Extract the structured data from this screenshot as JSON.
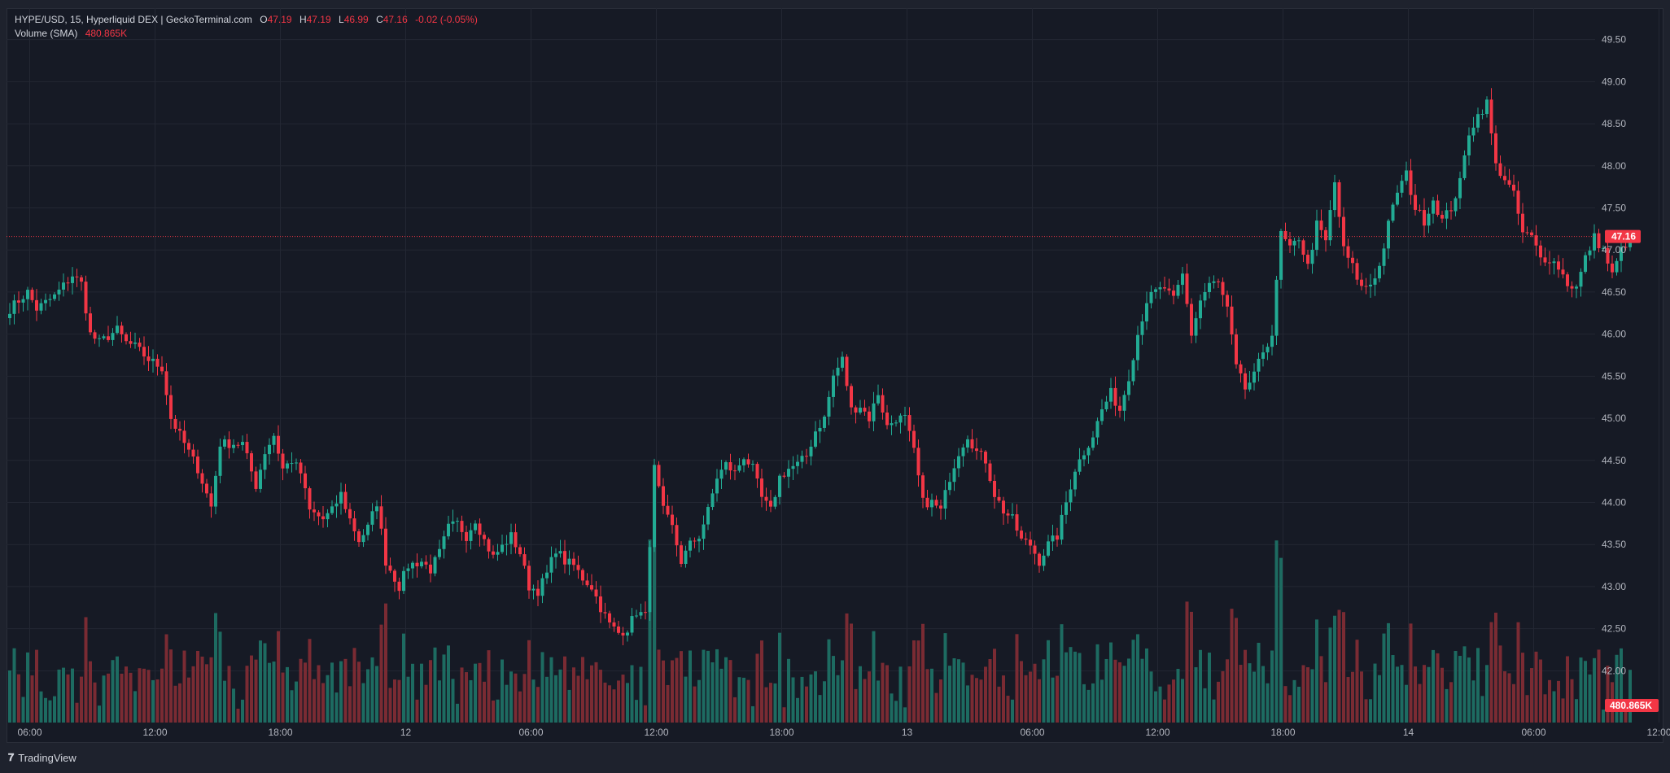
{
  "legend": {
    "symbol": "HYPE/USD, 15, Hyperliquid DEX | GeckoTerminal.com",
    "o_label": "O",
    "o_value": "47.19",
    "h_label": "H",
    "h_value": "47.19",
    "l_label": "L",
    "l_value": "46.99",
    "c_label": "C",
    "c_value": "47.16",
    "change": "-0.02 (-0.05%)",
    "volume_label": "Volume (SMA)",
    "volume_value": "480.865K"
  },
  "footer": {
    "brand": "TradingView"
  },
  "colors": {
    "up": "#22ab94",
    "down": "#f23645",
    "up_vol": "#1d6b61",
    "down_vol": "#7a2b33",
    "bg": "#161a25",
    "grid": "#232733"
  },
  "chart_data": {
    "type": "candlestick",
    "interval": "15",
    "y_ticks": [
      "49.50",
      "49.00",
      "48.50",
      "48.00",
      "47.50",
      "47.00",
      "46.50",
      "46.00",
      "45.50",
      "45.00",
      "44.50",
      "44.00",
      "43.50",
      "43.00",
      "42.50",
      "42.00"
    ],
    "ylim": [
      41.8,
      49.7
    ],
    "x_ticks": [
      "06:00",
      "12:00",
      "18:00",
      "12",
      "06:00",
      "12:00",
      "18:00",
      "13",
      "06:00",
      "12:00",
      "18:00",
      "14",
      "06:00",
      "12:00"
    ],
    "last_price": 47.16,
    "last_price_label": "47.16",
    "last_volume_label": "480.865K",
    "anchors": [
      [
        0,
        46.3
      ],
      [
        4,
        46.5
      ],
      [
        6,
        46.3
      ],
      [
        10,
        46.45
      ],
      [
        14,
        46.7
      ],
      [
        16,
        46.6
      ],
      [
        18,
        46.0
      ],
      [
        20,
        45.9
      ],
      [
        24,
        46.05
      ],
      [
        26,
        45.9
      ],
      [
        28,
        45.85
      ],
      [
        31,
        45.7
      ],
      [
        34,
        45.6
      ],
      [
        36,
        45.0
      ],
      [
        38,
        44.8
      ],
      [
        42,
        44.4
      ],
      [
        45,
        43.95
      ],
      [
        47,
        44.7
      ],
      [
        52,
        44.7
      ],
      [
        55,
        44.2
      ],
      [
        57,
        44.6
      ],
      [
        59,
        44.8
      ],
      [
        61,
        44.4
      ],
      [
        63,
        44.5
      ],
      [
        65,
        44.35
      ],
      [
        67,
        43.9
      ],
      [
        70,
        43.8
      ],
      [
        72,
        43.9
      ],
      [
        74,
        44.1
      ],
      [
        76,
        43.8
      ],
      [
        78,
        43.55
      ],
      [
        80,
        43.7
      ],
      [
        82,
        44.0
      ],
      [
        84,
        43.3
      ],
      [
        87,
        43.0
      ],
      [
        89,
        43.25
      ],
      [
        92,
        43.3
      ],
      [
        94,
        43.2
      ],
      [
        96,
        43.4
      ],
      [
        98,
        43.7
      ],
      [
        100,
        43.75
      ],
      [
        102,
        43.6
      ],
      [
        104,
        43.8
      ],
      [
        106,
        43.55
      ],
      [
        108,
        43.35
      ],
      [
        112,
        43.6
      ],
      [
        114,
        43.4
      ],
      [
        116,
        43.0
      ],
      [
        118,
        42.95
      ],
      [
        120,
        43.15
      ],
      [
        122,
        43.45
      ],
      [
        124,
        43.3
      ],
      [
        126,
        43.25
      ],
      [
        128,
        43.1
      ],
      [
        130,
        43.0
      ],
      [
        132,
        42.75
      ],
      [
        134,
        42.55
      ],
      [
        136,
        42.45
      ],
      [
        138,
        42.5
      ],
      [
        140,
        42.7
      ],
      [
        142,
        42.65
      ],
      [
        144,
        44.4
      ],
      [
        146,
        43.9
      ],
      [
        148,
        43.7
      ],
      [
        150,
        43.3
      ],
      [
        152,
        43.5
      ],
      [
        154,
        43.6
      ],
      [
        156,
        43.9
      ],
      [
        158,
        44.3
      ],
      [
        160,
        44.45
      ],
      [
        162,
        44.35
      ],
      [
        164,
        44.55
      ],
      [
        166,
        44.4
      ],
      [
        168,
        44.05
      ],
      [
        170,
        43.9
      ],
      [
        172,
        44.3
      ],
      [
        174,
        44.4
      ],
      [
        176,
        44.45
      ],
      [
        178,
        44.55
      ],
      [
        180,
        44.85
      ],
      [
        182,
        45.0
      ],
      [
        184,
        45.5
      ],
      [
        186,
        45.7
      ],
      [
        188,
        45.1
      ],
      [
        190,
        45.15
      ],
      [
        192,
        45.0
      ],
      [
        194,
        45.3
      ],
      [
        196,
        44.9
      ],
      [
        198,
        45.0
      ],
      [
        200,
        45.0
      ],
      [
        202,
        44.6
      ],
      [
        204,
        44.0
      ],
      [
        206,
        44.0
      ],
      [
        208,
        43.9
      ],
      [
        210,
        44.3
      ],
      [
        212,
        44.6
      ],
      [
        214,
        44.8
      ],
      [
        216,
        44.6
      ],
      [
        218,
        44.5
      ],
      [
        220,
        44.1
      ],
      [
        222,
        43.9
      ],
      [
        224,
        43.8
      ],
      [
        226,
        43.55
      ],
      [
        228,
        43.5
      ],
      [
        230,
        43.3
      ],
      [
        232,
        43.5
      ],
      [
        234,
        43.6
      ],
      [
        236,
        44.0
      ],
      [
        238,
        44.4
      ],
      [
        240,
        44.6
      ],
      [
        242,
        44.8
      ],
      [
        244,
        45.1
      ],
      [
        246,
        45.3
      ],
      [
        248,
        45.1
      ],
      [
        250,
        45.5
      ],
      [
        252,
        46.0
      ],
      [
        254,
        46.4
      ],
      [
        256,
        46.5
      ],
      [
        258,
        46.55
      ],
      [
        260,
        46.4
      ],
      [
        262,
        46.7
      ],
      [
        264,
        46.0
      ],
      [
        266,
        46.4
      ],
      [
        268,
        46.6
      ],
      [
        270,
        46.6
      ],
      [
        272,
        46.3
      ],
      [
        274,
        45.6
      ],
      [
        276,
        45.35
      ],
      [
        278,
        45.5
      ],
      [
        280,
        45.8
      ],
      [
        282,
        46.0
      ],
      [
        284,
        47.2
      ],
      [
        286,
        47.0
      ],
      [
        288,
        47.15
      ],
      [
        290,
        46.8
      ],
      [
        292,
        47.3
      ],
      [
        294,
        47.1
      ],
      [
        296,
        47.8
      ],
      [
        298,
        47.0
      ],
      [
        300,
        46.8
      ],
      [
        302,
        46.55
      ],
      [
        304,
        46.6
      ],
      [
        306,
        46.8
      ],
      [
        308,
        47.3
      ],
      [
        310,
        47.7
      ],
      [
        312,
        47.9
      ],
      [
        314,
        47.5
      ],
      [
        316,
        47.35
      ],
      [
        318,
        47.6
      ],
      [
        320,
        47.35
      ],
      [
        322,
        47.5
      ],
      [
        324,
        47.8
      ],
      [
        326,
        48.4
      ],
      [
        328,
        48.6
      ],
      [
        330,
        48.75
      ],
      [
        332,
        48.0
      ],
      [
        334,
        47.85
      ],
      [
        336,
        47.65
      ],
      [
        338,
        47.2
      ],
      [
        340,
        47.15
      ],
      [
        342,
        46.9
      ],
      [
        344,
        46.9
      ],
      [
        346,
        46.8
      ],
      [
        348,
        46.6
      ],
      [
        350,
        46.55
      ],
      [
        352,
        46.9
      ],
      [
        354,
        47.15
      ],
      [
        356,
        47.0
      ],
      [
        358,
        46.7
      ],
      [
        360,
        47.0
      ],
      [
        362,
        47.16
      ]
    ],
    "candle_count": 363,
    "x_tick_candles": [
      5,
      33,
      61,
      89,
      117,
      145,
      173,
      201,
      229,
      257,
      285,
      313,
      341,
      369
    ]
  }
}
